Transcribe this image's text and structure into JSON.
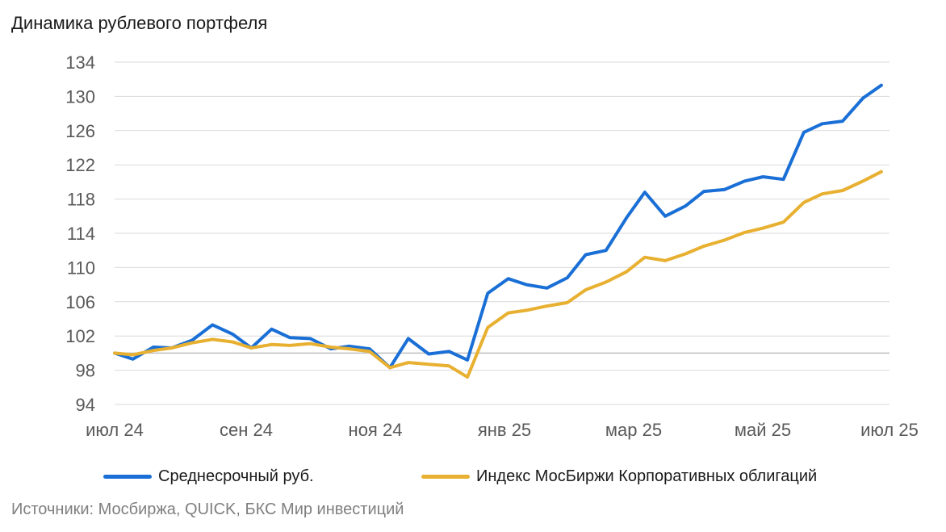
{
  "chart_data": {
    "type": "line",
    "title": "Динамика рублевого портфеля",
    "x_tick_labels": [
      "июл  24",
      "сен  24",
      "ноя  24",
      "янв  25",
      "мар  25",
      "май  25",
      "июл  25"
    ],
    "ylim": [
      94,
      134
    ],
    "y_ticks": [
      94,
      98,
      102,
      106,
      110,
      114,
      118,
      122,
      126,
      130,
      134
    ],
    "baseline": 100,
    "grid": true,
    "legend_position": "bottom",
    "x": [
      "2024-07-01",
      "2024-07-10",
      "2024-07-20",
      "2024-07-29",
      "2024-08-08",
      "2024-08-18",
      "2024-08-28",
      "2024-09-06",
      "2024-09-16",
      "2024-09-25",
      "2024-10-05",
      "2024-10-15",
      "2024-10-24",
      "2024-11-03",
      "2024-11-13",
      "2024-11-22",
      "2024-12-02",
      "2024-12-12",
      "2024-12-21",
      "2024-12-31",
      "2025-01-10",
      "2025-01-19",
      "2025-01-29",
      "2025-02-08",
      "2025-02-17",
      "2025-02-27",
      "2025-03-09",
      "2025-03-18",
      "2025-03-28",
      "2025-04-07",
      "2025-04-16",
      "2025-04-26",
      "2025-05-06",
      "2025-05-15",
      "2025-05-25",
      "2025-06-04",
      "2025-06-13",
      "2025-06-23",
      "2025-07-03",
      "2025-07-12"
    ],
    "series": [
      {
        "name": "Среднесрочный руб.",
        "color": "#1a6fd6",
        "values": [
          100.0,
          99.3,
          100.7,
          100.6,
          101.5,
          103.3,
          102.2,
          100.6,
          102.8,
          101.8,
          101.7,
          100.5,
          100.8,
          100.5,
          98.3,
          101.7,
          99.9,
          100.2,
          99.2,
          107.0,
          108.7,
          108.0,
          107.6,
          108.8,
          111.5,
          112.0,
          115.8,
          118.8,
          116.0,
          117.2,
          118.9,
          119.1,
          120.1,
          120.6,
          120.3,
          125.8,
          126.8,
          127.1,
          129.8,
          131.3
        ]
      },
      {
        "name": "Индекс МосБиржи Корпоративных облигаций",
        "color": "#e8b030",
        "values": [
          100.0,
          99.8,
          100.3,
          100.6,
          101.2,
          101.6,
          101.3,
          100.6,
          101.0,
          100.9,
          101.1,
          100.7,
          100.5,
          100.2,
          98.3,
          98.9,
          98.7,
          98.5,
          97.2,
          103.0,
          104.7,
          105.0,
          105.5,
          105.9,
          107.4,
          108.3,
          109.5,
          111.2,
          110.8,
          111.6,
          112.5,
          113.2,
          114.1,
          114.6,
          115.3,
          117.6,
          118.6,
          119.0,
          120.1,
          121.2
        ]
      }
    ]
  },
  "source_text": "Источники: Мосбиржа, QUICK, БКС Мир инвестиций"
}
